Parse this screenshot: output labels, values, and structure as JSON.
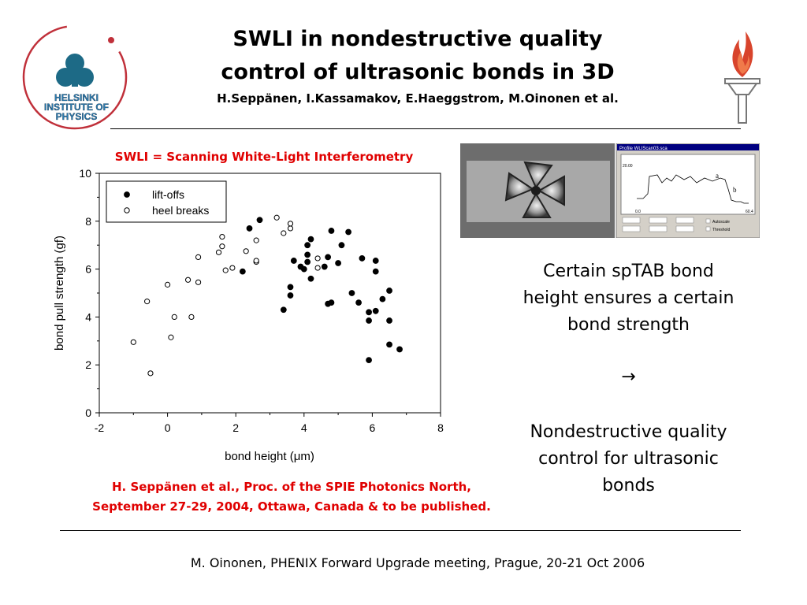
{
  "header": {
    "title_line1": "SWLI in nondestructive quality",
    "title_line2": "control of ultrasonic bonds in 3D",
    "authors": "H.Seppänen, I.Kassamakov, E.Haeggstrom, M.Oinonen et al."
  },
  "logos": {
    "left_text": [
      "HELSINKI",
      "INSTITUTE OF",
      "PHYSICS"
    ]
  },
  "inset": {
    "window_title": "Profile WLIScan03.sca",
    "label_a": "a",
    "label_b": "b",
    "y_tick": "20.00",
    "x_start": "0.0",
    "x_end": "60.4",
    "checkbox1": "Autoscale",
    "checkbox2": "Threshold"
  },
  "chart_data": {
    "type": "scatter",
    "title": "SWLI = Scanning White-Light Interferometry",
    "xlabel_prefix": "bond height (",
    "xlabel_mu": "μ",
    "xlabel_suffix": "m)",
    "ylabel": "bond pull strength (gf)",
    "xlim": [
      -2,
      8
    ],
    "ylim": [
      0,
      10
    ],
    "xticks": [
      "-2",
      "0",
      "2",
      "4",
      "6",
      "8"
    ],
    "yticks": [
      "0",
      "2",
      "4",
      "6",
      "8",
      "10"
    ],
    "legend_position": "top-right",
    "series": [
      {
        "name": "lift-offs",
        "marker": "filled-circle",
        "points": [
          [
            2.2,
            5.9
          ],
          [
            2.4,
            7.7
          ],
          [
            2.7,
            8.05
          ],
          [
            3.4,
            4.3
          ],
          [
            3.6,
            4.9
          ],
          [
            3.6,
            5.25
          ],
          [
            3.7,
            6.35
          ],
          [
            3.9,
            6.1
          ],
          [
            4.0,
            6.0
          ],
          [
            4.1,
            6.3
          ],
          [
            4.1,
            6.6
          ],
          [
            4.1,
            7.0
          ],
          [
            4.2,
            5.6
          ],
          [
            4.2,
            7.25
          ],
          [
            4.6,
            6.1
          ],
          [
            4.7,
            6.5
          ],
          [
            4.7,
            4.55
          ],
          [
            4.8,
            4.6
          ],
          [
            4.8,
            7.6
          ],
          [
            5.0,
            6.25
          ],
          [
            5.1,
            7.0
          ],
          [
            5.3,
            7.55
          ],
          [
            5.4,
            5.0
          ],
          [
            5.6,
            4.6
          ],
          [
            5.7,
            6.45
          ],
          [
            5.9,
            2.2
          ],
          [
            5.9,
            3.85
          ],
          [
            5.9,
            4.2
          ],
          [
            6.1,
            4.25
          ],
          [
            6.1,
            5.9
          ],
          [
            6.1,
            6.35
          ],
          [
            6.3,
            4.75
          ],
          [
            6.5,
            5.1
          ],
          [
            6.5,
            3.85
          ],
          [
            6.5,
            2.85
          ],
          [
            6.8,
            2.65
          ]
        ]
      },
      {
        "name": "heel breaks",
        "marker": "open-circle",
        "points": [
          [
            -1.0,
            2.95
          ],
          [
            -0.6,
            4.65
          ],
          [
            -0.5,
            1.65
          ],
          [
            0.0,
            5.35
          ],
          [
            0.1,
            3.15
          ],
          [
            0.2,
            4.0
          ],
          [
            0.6,
            5.55
          ],
          [
            0.7,
            4.0
          ],
          [
            0.9,
            5.45
          ],
          [
            0.9,
            6.5
          ],
          [
            1.5,
            6.7
          ],
          [
            1.6,
            6.95
          ],
          [
            1.6,
            7.35
          ],
          [
            1.7,
            5.95
          ],
          [
            1.9,
            6.05
          ],
          [
            2.3,
            6.75
          ],
          [
            2.6,
            6.3
          ],
          [
            2.6,
            6.35
          ],
          [
            2.6,
            7.2
          ],
          [
            3.2,
            8.15
          ],
          [
            3.4,
            7.5
          ],
          [
            3.6,
            7.7
          ],
          [
            3.6,
            7.9
          ],
          [
            4.4,
            6.05
          ],
          [
            4.4,
            6.45
          ]
        ]
      }
    ]
  },
  "citation": {
    "line1": "H. Seppänen et al., Proc. of the SPIE Photonics North,",
    "line2": "September 27-29, 2004, Ottawa, Canada & to be published."
  },
  "side": {
    "line1": "Certain spTAB bond",
    "line2": "height ensures a certain",
    "line3": "bond strength",
    "arrow": "→",
    "line4": "Nondestructive quality",
    "line5": "control for ultrasonic",
    "line6": "bonds"
  },
  "footer": {
    "text": "M. Oinonen, PHENIX Forward Upgrade meeting, Prague, 20-21 Oct 2006"
  }
}
